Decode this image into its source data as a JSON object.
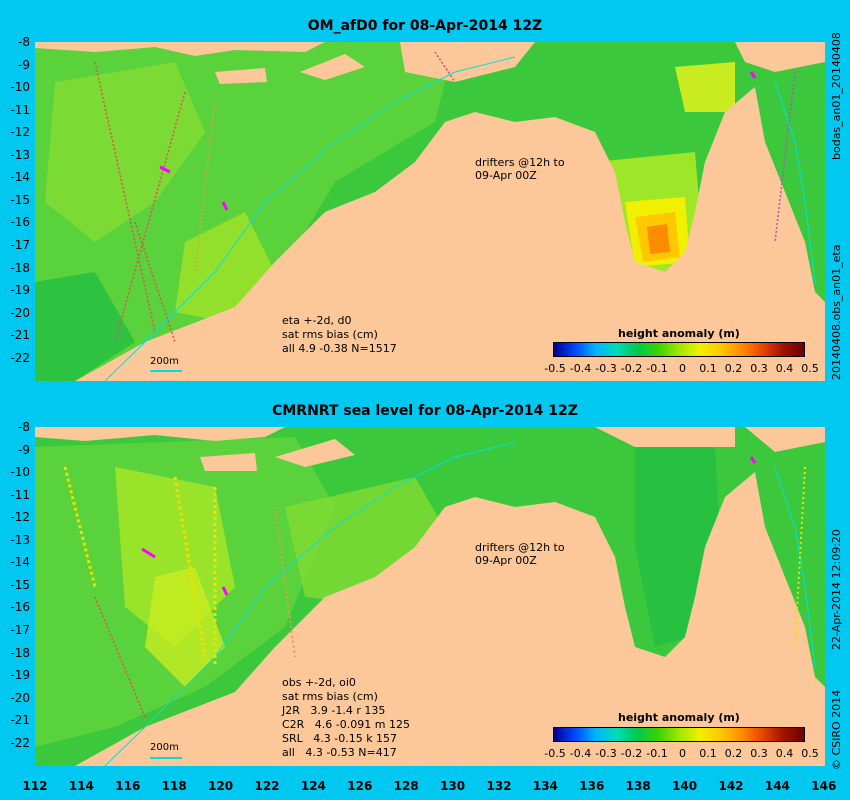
{
  "colors": {
    "background": "#00c8f0",
    "land": "#fcc89a",
    "ocean_base": "#3cc83c",
    "contour": "#00e0e0"
  },
  "panel1": {
    "title": "OM_afD0 for 08-Apr-2014 12Z",
    "right_label": "bodas_an01_20140408",
    "right_label2": "20140408.obs_an01_eta",
    "info": "eta +-2d, d0\nsat rms bias (cm)\nall 4.9 -0.38 N=1517",
    "drifters": "drifters @12h to\n09-Apr 00Z",
    "scale": "200m",
    "cbar_title": "height anomaly (m)"
  },
  "panel2": {
    "title": "CMRNRT sea level  for 08-Apr-2014 12Z",
    "right_label": "22-Apr-2014 12:09:20",
    "right_label2": "© CSIRO 2014",
    "info": "obs +-2d, oi0\nsat rms bias (cm)\nJ2R   3.9 -1.4 r 135\nC2R   4.6 -0.091 m 125\nSRL   4.3 -0.15 k 157\nall   4.3 -0.53 N=417",
    "drifters": "drifters @12h to\n09-Apr 00Z",
    "scale": "200m",
    "cbar_title": "height anomaly (m)"
  },
  "y_ticks": [
    "-8",
    "-9",
    "-10",
    "-11",
    "-12",
    "-13",
    "-14",
    "-15",
    "-16",
    "-17",
    "-18",
    "-19",
    "-20",
    "-21",
    "-22"
  ],
  "x_ticks": [
    "112",
    "114",
    "116",
    "118",
    "120",
    "122",
    "124",
    "126",
    "128",
    "130",
    "132",
    "134",
    "136",
    "138",
    "140",
    "142",
    "144",
    "146"
  ],
  "cbar_labels": [
    "-0.5",
    "-0.4",
    "-0.3",
    "-0.2",
    "-0.1",
    "0",
    "0.1",
    "0.2",
    "0.3",
    "0.4",
    "0.5"
  ]
}
